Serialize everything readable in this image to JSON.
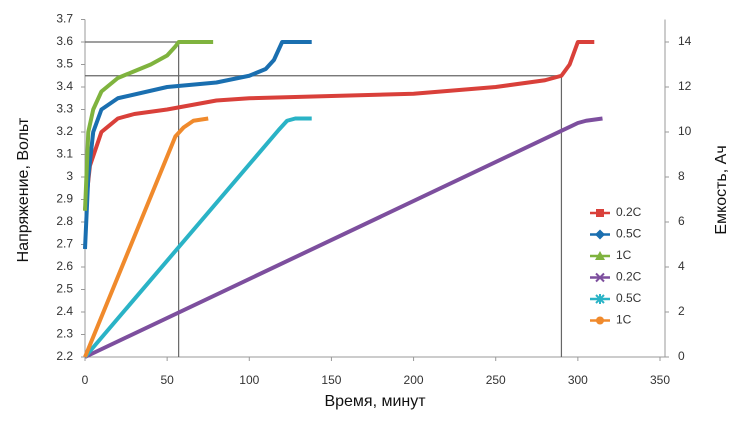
{
  "chart_data": {
    "type": "line",
    "xlabel": "Время, минут",
    "ylabel": "Напряжение, Вольт",
    "y2label": "Емкость, Ач",
    "xlim": [
      0,
      350
    ],
    "xticks": [
      0,
      50,
      100,
      150,
      200,
      250,
      300,
      350
    ],
    "ylim": [
      2.2,
      3.7
    ],
    "yticks": [
      2.2,
      2.3,
      2.4,
      2.5,
      2.6,
      2.7,
      2.8,
      2.9,
      3,
      3.1,
      3.2,
      3.3,
      3.4,
      3.5,
      3.6,
      3.7
    ],
    "y2lim": [
      0,
      15
    ],
    "y2ticks": [
      0,
      2,
      4,
      6,
      8,
      10,
      12,
      14
    ],
    "legend": "right",
    "reference_lines": [
      {
        "x": 57,
        "y": 3.6
      },
      {
        "x": 290,
        "y": 3.45
      }
    ],
    "series": [
      {
        "name": "0.2C",
        "color": "#d9403a",
        "marker": "square",
        "x": [
          0,
          3,
          10,
          20,
          30,
          50,
          80,
          100,
          150,
          200,
          250,
          280,
          290,
          295,
          300,
          310
        ],
        "values": [
          2.85,
          3.05,
          3.2,
          3.26,
          3.28,
          3.3,
          3.34,
          3.35,
          3.36,
          3.37,
          3.4,
          3.43,
          3.45,
          3.5,
          3.6,
          3.6
        ]
      },
      {
        "name": "0.5C",
        "color": "#1a6fb0",
        "marker": "diamond",
        "x": [
          0,
          2,
          5,
          10,
          20,
          50,
          80,
          100,
          110,
          115,
          120,
          138
        ],
        "values": [
          2.68,
          3,
          3.2,
          3.3,
          3.35,
          3.4,
          3.42,
          3.45,
          3.48,
          3.52,
          3.6,
          3.6
        ]
      },
      {
        "name": "1C",
        "color": "#7fb33e",
        "marker": "triangle",
        "x": [
          0,
          2,
          5,
          10,
          20,
          30,
          40,
          50,
          55,
          57,
          78
        ],
        "values": [
          2.85,
          3.2,
          3.3,
          3.38,
          3.44,
          3.47,
          3.5,
          3.54,
          3.58,
          3.6,
          3.6
        ]
      },
      {
        "name": "0.2C",
        "color": "#7d4f9e",
        "marker": "cross",
        "axis": "y2",
        "x": [
          0,
          300,
          305,
          315
        ],
        "values": [
          0,
          10.4,
          10.5,
          10.6
        ]
      },
      {
        "name": "0.5C",
        "color": "#2ab3c6",
        "marker": "star",
        "axis": "y2",
        "x": [
          0,
          118,
          123,
          128,
          138
        ],
        "values": [
          0,
          10.1,
          10.5,
          10.6,
          10.6
        ]
      },
      {
        "name": "1C",
        "color": "#f08a2c",
        "marker": "circle",
        "axis": "y2",
        "x": [
          0,
          55,
          60,
          66,
          75
        ],
        "values": [
          0,
          9.8,
          10.2,
          10.5,
          10.6
        ]
      }
    ]
  }
}
